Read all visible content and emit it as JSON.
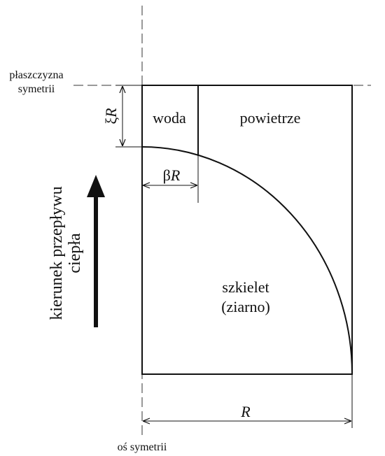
{
  "labels": {
    "plane": [
      "płaszczyzna",
      "symetrii"
    ],
    "water": "woda",
    "air": "powietrze",
    "xi": {
      "symbol": "ξ",
      "var": "R"
    },
    "beta": {
      "symbol": "β",
      "var": "R"
    },
    "flow": [
      "kierunek przepływu",
      "ciepła"
    ],
    "skeleton": [
      "szkielet",
      "(ziarno)"
    ],
    "radius": "R",
    "axis": "oś symetrii"
  }
}
